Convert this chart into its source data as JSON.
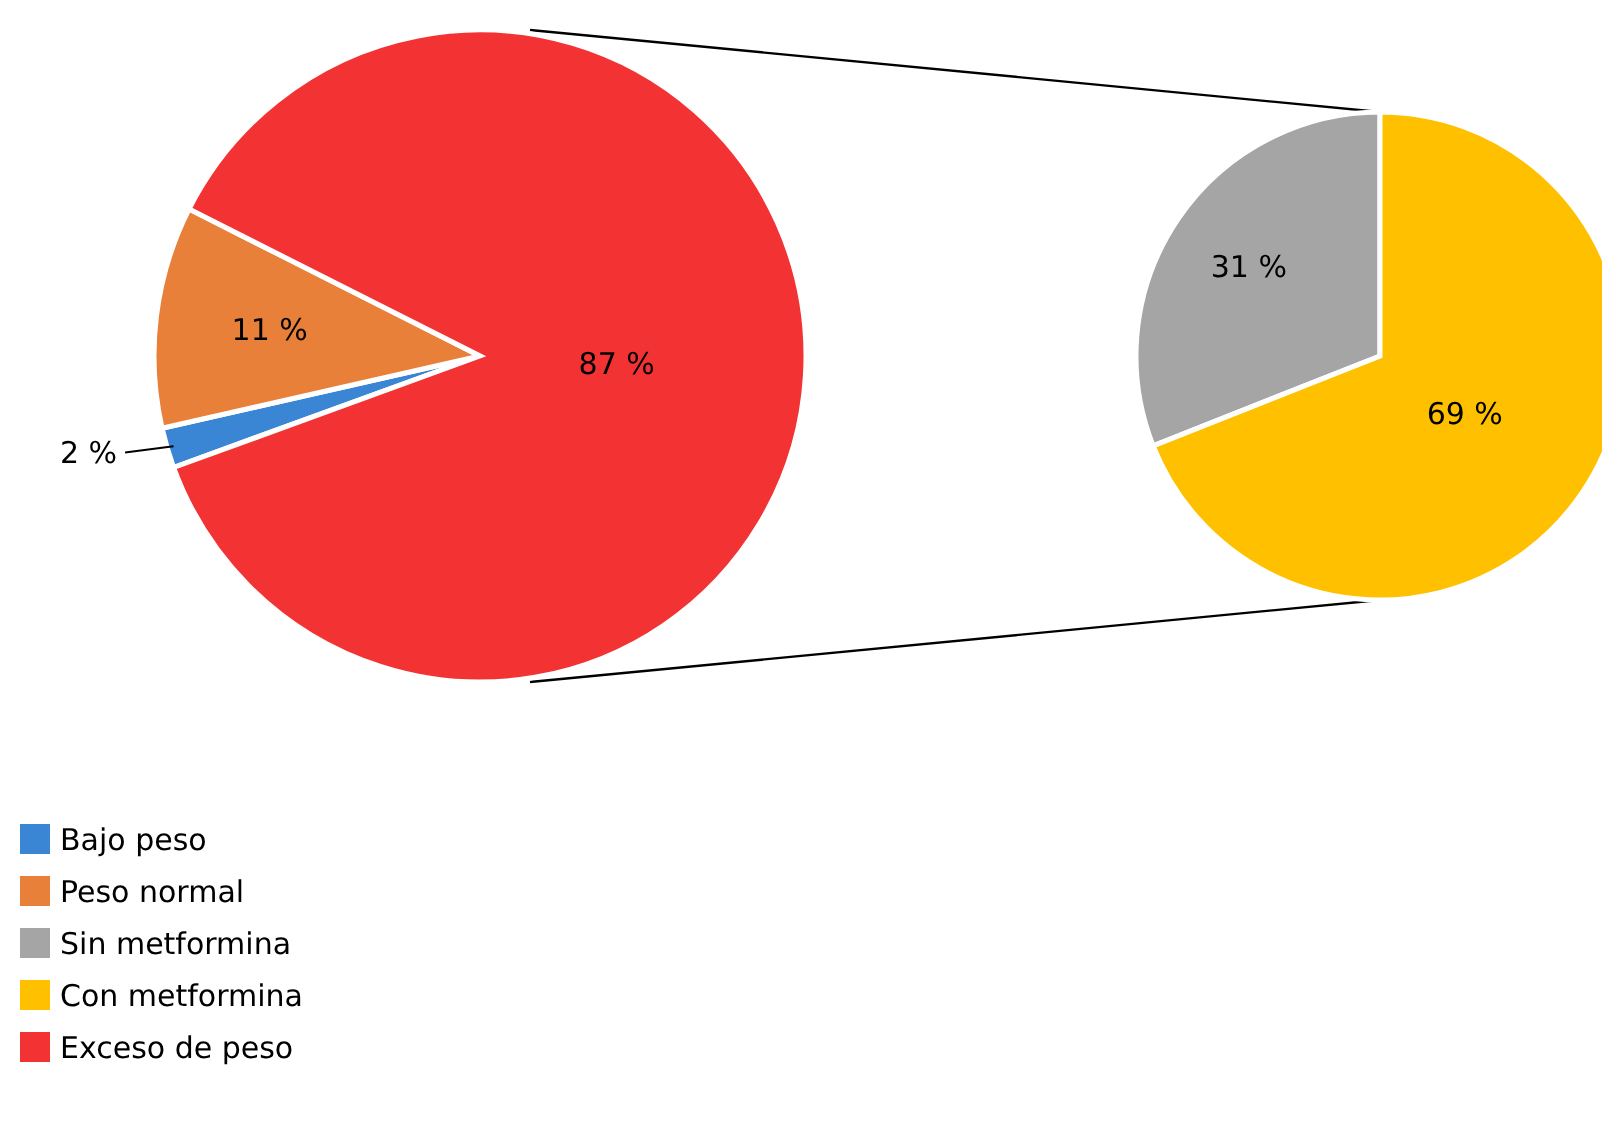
{
  "chart_data": [
    {
      "type": "pie",
      "categories": [
        "Bajo peso",
        "Peso normal",
        "Exceso de peso"
      ],
      "values": [
        2,
        11,
        87
      ],
      "colors": [
        "#3a86d4",
        "#e8803a",
        "#f33333"
      ],
      "value_labels": [
        "2 %",
        "11 %",
        "87 %"
      ],
      "legend": "bottom"
    },
    {
      "type": "pie",
      "categories": [
        "Sin metformina",
        "Con metformina"
      ],
      "values": [
        31,
        69
      ],
      "colors": [
        "#a5a5a5",
        "#ffc000"
      ],
      "value_labels": [
        "31 %",
        "69 %"
      ],
      "legend": "bottom"
    }
  ]
}
